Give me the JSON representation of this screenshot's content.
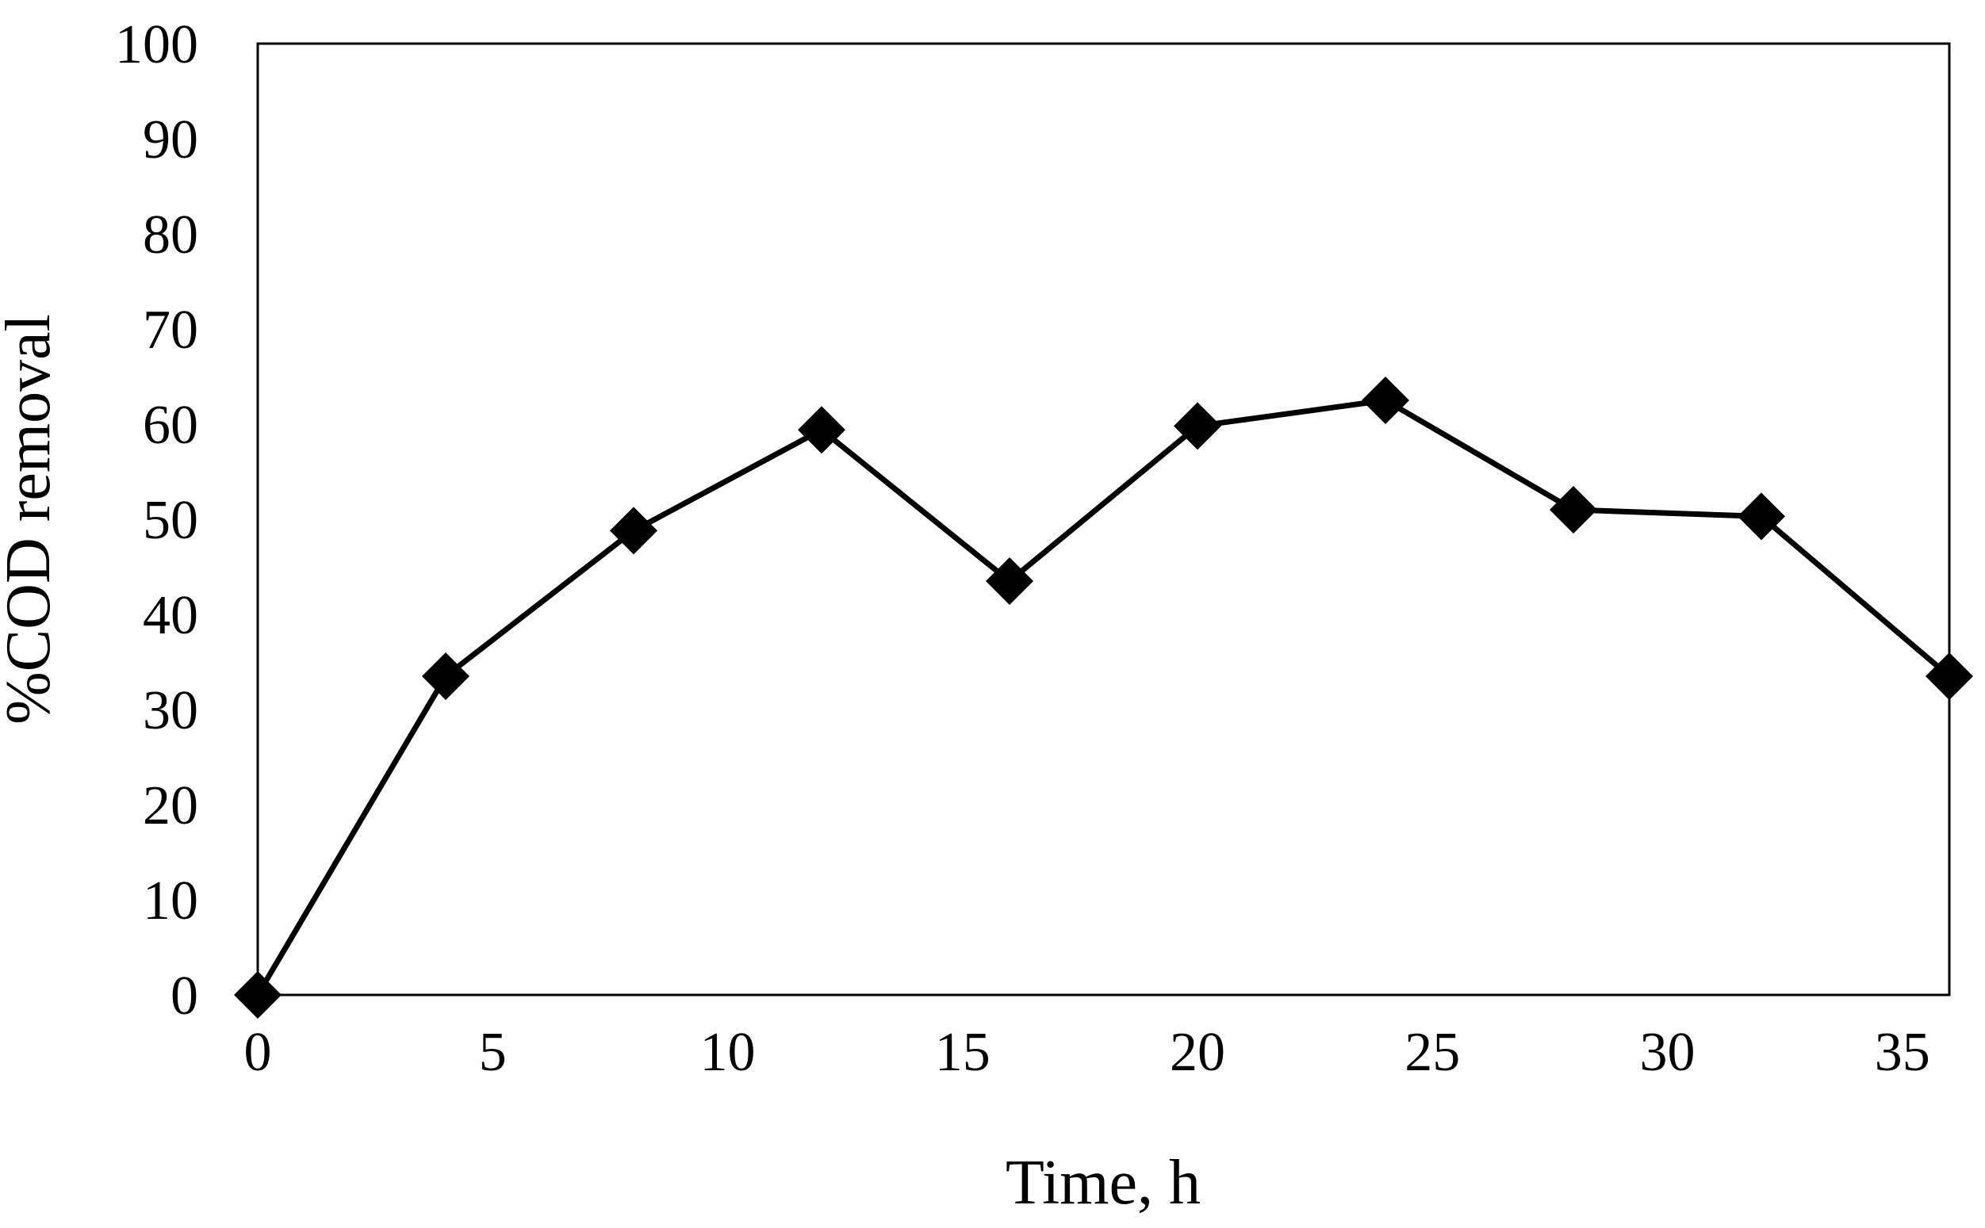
{
  "chart_data": {
    "type": "line",
    "xlabel": "Time, h",
    "ylabel": "%COD removal",
    "xlim": [
      0,
      36
    ],
    "ylim": [
      0,
      100
    ],
    "xticks": [
      0,
      5,
      10,
      15,
      20,
      25,
      30,
      35
    ],
    "yticks": [
      0,
      10,
      20,
      30,
      40,
      50,
      60,
      70,
      80,
      90,
      100
    ],
    "grid": false,
    "legend": "none",
    "marker": "diamond",
    "color": "#000000",
    "series": [
      {
        "x": [
          0,
          4,
          8,
          12,
          16,
          20,
          24,
          28,
          32,
          36
        ],
        "y": [
          0,
          33.5,
          48.8,
          59.4,
          43.5,
          59.8,
          62.5,
          51,
          50.3,
          33.5
        ]
      }
    ]
  }
}
